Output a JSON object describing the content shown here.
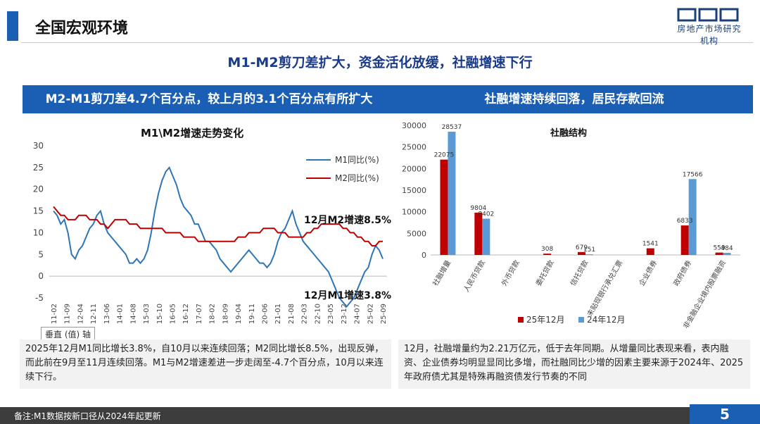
{
  "header": {
    "title": "全国宏观环境",
    "logo_text": "房地产市场研究机构"
  },
  "subtitle": "M1-M2剪刀差扩大，资金活化放缓，社融增速下行",
  "left_panel": {
    "heading": "M2-M1剪刀差4.7个百分点，较上月的3.1个百分点有所扩大",
    "chart_title": "M1\\M2增速走势变化",
    "annotation_m2": "12月M2增速8.5%",
    "annotation_m1": "12月M1增速3.8%",
    "axis_chip": "垂直 (值) 轴",
    "description": "2025年12月M1同比增长3.8%，自10月以来连续回落；M2同比增长8.5%，出现反弹，而此前在9月至11月连续回落。M1与M2增速差进一步走阔至-4.7个百分点，10月以来连续下行。"
  },
  "right_panel": {
    "heading": "社融增速持续回落，居民存款回流",
    "chart_title": "社融结构",
    "description": "12月，社融增量约为2.21万亿元，低于去年同期。从增量同比表现来看，表内融资、企业债券均明显显同比多增，而社融同比少增的因素主要来源于2024年、2025年政府债尤其是特殊再融资债发行节奏的不同"
  },
  "footer": {
    "note": "备注:M1数据按新口径从2024年起更新",
    "page": "5"
  },
  "chart_data": [
    {
      "type": "line",
      "title": "M1\\M2增速走势变化",
      "ylim": [
        -5,
        30
      ],
      "yticks": [
        -5,
        0,
        5,
        10,
        15,
        20,
        25,
        30
      ],
      "x_ticks": [
        "11-02",
        "11-09",
        "12-04",
        "12-11",
        "13-06",
        "14-01",
        "14-08",
        "15-03",
        "15-10",
        "16-05",
        "16-12",
        "17-07",
        "18-02",
        "18-09",
        "19-04",
        "19-11",
        "20-06",
        "21-01",
        "21-08",
        "22-03",
        "22-10",
        "23-05",
        "23-12",
        "24-07",
        "25-02",
        "25-09"
      ],
      "grid": false,
      "legend_position": "top-right",
      "series": [
        {
          "name": "M1同比(%)",
          "color": "#2e75b6",
          "values": [
            15,
            14,
            12,
            13,
            10,
            5,
            4,
            6,
            7,
            9,
            11,
            12,
            14,
            15,
            12,
            10,
            9,
            8,
            7,
            6,
            5,
            3,
            3,
            4,
            3,
            4,
            6,
            10,
            15,
            19,
            22,
            24,
            25,
            23,
            21,
            18,
            16,
            15,
            14,
            12,
            12,
            10,
            8,
            8,
            7,
            6,
            4,
            3,
            2,
            1,
            2,
            3,
            4,
            5,
            6,
            5,
            4,
            3,
            3,
            2,
            3,
            5,
            8,
            10,
            11,
            13,
            15,
            12,
            10,
            8,
            7,
            6,
            5,
            4,
            3,
            2,
            1,
            -1,
            -3,
            -5,
            -6,
            -7,
            -6,
            -5,
            -3,
            -1,
            1,
            2,
            5,
            7,
            6,
            4
          ]
        },
        {
          "name": "M2同比(%)",
          "color": "#c00000",
          "values": [
            16,
            15,
            14,
            14,
            13,
            13,
            13,
            14,
            14,
            14,
            13,
            13,
            13,
            12,
            12,
            11,
            12,
            13,
            13,
            13,
            13,
            12,
            12,
            12,
            11,
            11,
            11,
            11,
            11,
            11,
            11,
            10,
            10,
            10,
            10,
            10,
            9,
            9,
            9,
            9,
            8,
            8,
            8,
            8,
            8,
            8,
            8,
            8,
            8,
            8,
            8,
            9,
            9,
            9,
            10,
            10,
            10,
            10,
            11,
            11,
            11,
            11,
            10,
            10,
            10,
            9,
            9,
            9,
            9,
            9,
            10,
            10,
            11,
            11,
            12,
            12,
            12,
            12,
            12,
            12,
            11,
            11,
            10,
            10,
            9,
            9,
            8,
            8,
            7,
            7,
            8,
            8
          ]
        }
      ]
    },
    {
      "type": "bar",
      "title": "社融结构",
      "ylim": [
        0,
        30000
      ],
      "yticks": [
        0,
        5000,
        10000,
        15000,
        20000,
        25000,
        30000
      ],
      "categories": [
        "社融增量",
        "人民币贷款",
        "外币贷款",
        "委托贷款",
        "信托贷款",
        "未贴现银行承兑汇票",
        "企业债券",
        "政府债券",
        "非金融企业境内股票融资"
      ],
      "legend_position": "bottom",
      "series": [
        {
          "name": "25年12月",
          "color": "#c00000",
          "values": [
            22075,
            9804,
            0,
            308,
            679,
            0,
            1541,
            6833,
            559
          ]
        },
        {
          "name": "24年12月",
          "color": "#5b9bd5",
          "values": [
            28537,
            8402,
            0,
            0,
            151,
            0,
            0,
            17566,
            484
          ]
        }
      ],
      "data_labels": [
        {
          "series": 0,
          "category": 0,
          "text": "22075"
        },
        {
          "series": 1,
          "category": 0,
          "text": "28537"
        },
        {
          "series": 0,
          "category": 1,
          "text": "9804"
        },
        {
          "series": 1,
          "category": 1,
          "text": "8402"
        },
        {
          "series": 0,
          "category": 3,
          "text": "308"
        },
        {
          "series": 0,
          "category": 4,
          "text": "679"
        },
        {
          "series": 1,
          "category": 4,
          "text": "151"
        },
        {
          "series": 0,
          "category": 6,
          "text": "1541"
        },
        {
          "series": 0,
          "category": 7,
          "text": "6833"
        },
        {
          "series": 1,
          "category": 7,
          "text": "17566"
        },
        {
          "series": 0,
          "category": 8,
          "text": "559"
        },
        {
          "series": 1,
          "category": 8,
          "text": "484"
        }
      ]
    }
  ]
}
